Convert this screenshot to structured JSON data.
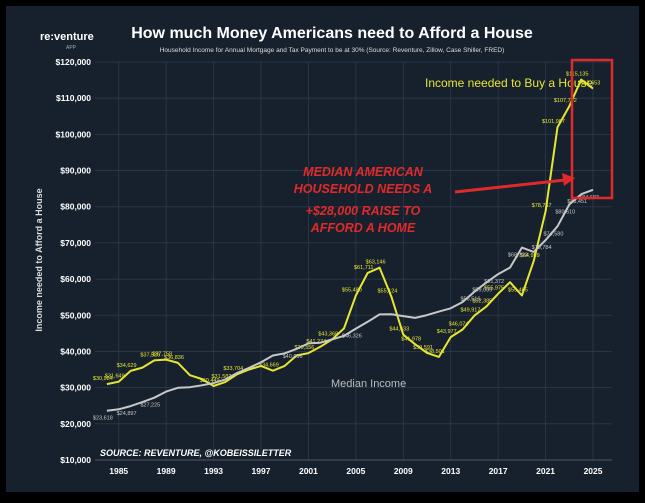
{
  "brand": {
    "name": "re:venture",
    "sub": "APP"
  },
  "chart_data": {
    "type": "line",
    "title": "How much Money Americans need to Afford a House",
    "subtitle": "Household Income for Annual Mortgage and Tax Payment to be at 30% (Source: Reventure, Zillow, Case Shiller, FRED)",
    "y_label": "Income needed to Afford a House",
    "series_labels": [
      "Income needed to Buy a House",
      "Median Income"
    ],
    "callout": [
      "MEDIAN AMERICAN",
      "HOUSEHOLD NEEDS A",
      "+$28,000 RAISE TO",
      "AFFORD A HOME"
    ],
    "source": "SOURCE: REVENTURE, @KOBEISSILETTER",
    "x": [
      1984,
      1985,
      1986,
      1987,
      1988,
      1989,
      1990,
      1991,
      1992,
      1993,
      1994,
      1995,
      1996,
      1997,
      1998,
      1999,
      2000,
      2001,
      2002,
      2003,
      2004,
      2005,
      2006,
      2007,
      2008,
      2009,
      2010,
      2011,
      2012,
      2013,
      2014,
      2015,
      2016,
      2017,
      2018,
      2019,
      2020,
      2021,
      2022,
      2023,
      2024,
      2025
    ],
    "series": [
      {
        "name": "Income needed to Buy a House",
        "color": "#e6e632",
        "values": [
          30984,
          31649,
          34629,
          35526,
          37526,
          37758,
          36836,
          33432,
          32384,
          30449,
          31582,
          33704,
          35000,
          36000,
          34669,
          36000,
          38885,
          39556,
          41274,
          43368,
          46384,
          55480,
          61711,
          63146,
          55124,
          44633,
          41978,
          39591,
          38501,
          43977,
          46074,
          49917,
          52385,
          55975,
          59150,
          55465,
          64959,
          78767,
          101987,
          107792,
          115135,
          112653
        ],
        "value_labels": [
          "$30,984",
          "$31,649",
          "$34,629",
          null,
          "$37,526",
          "$37,758",
          "$36,836",
          null,
          null,
          "$30,449",
          "$31,582",
          "$33,704",
          null,
          null,
          "$34,669",
          null,
          null,
          "$39,556",
          "$41,274",
          "$43,368",
          null,
          "$55,480",
          "$61,711",
          "$63,146",
          "$55,124",
          "$44,633",
          "$41,978",
          "$39,591",
          "$38,501",
          "$43,977",
          "$46,074",
          "$49,917",
          "$52,385",
          "$55,975",
          null,
          "$55,465",
          "$64,959",
          "$78,767",
          "$101,987",
          "$107,792",
          "$115,135",
          "$112,653"
        ]
      },
      {
        "name": "Median Income",
        "color": "#c8c8c8",
        "values": [
          23618,
          24000,
          24897,
          26000,
          27225,
          28906,
          29943,
          30126,
          30636,
          31241,
          32264,
          34076,
          35492,
          37005,
          38885,
          39500,
          40696,
          42228,
          42409,
          43318,
          44334,
          46326,
          48201,
          50233,
          50303,
          49777,
          49276,
          50054,
          51017,
          51939,
          53657,
          56516,
          59039,
          61372,
          63179,
          68703,
          67521,
          70784,
          74580,
          80610,
          83451,
          84683
        ],
        "value_labels": [
          "$23,618",
          null,
          "$24,897",
          null,
          "$27,225",
          null,
          null,
          null,
          null,
          null,
          null,
          null,
          null,
          null,
          null,
          null,
          "$40,696",
          null,
          null,
          null,
          null,
          "$46,326",
          null,
          null,
          null,
          null,
          null,
          null,
          null,
          null,
          null,
          "$56,516",
          "$59,039",
          "$61,372",
          null,
          "$68,703",
          null,
          "$70,784",
          "$74,580",
          "$80,610",
          "$83,451",
          "$84,683"
        ]
      }
    ],
    "xlim": [
      1983,
      2026.6
    ],
    "xticks": [
      1985,
      1989,
      1993,
      1997,
      2001,
      2005,
      2009,
      2013,
      2017,
      2021,
      2025
    ],
    "ylim": [
      10000,
      120000
    ],
    "yticks": [
      {
        "value": 10000,
        "label": "$10,000"
      },
      {
        "value": 20000,
        "label": "$20,000"
      },
      {
        "value": 30000,
        "label": "$30,000"
      },
      {
        "value": 40000,
        "label": "$40,000"
      },
      {
        "value": 50000,
        "label": "$50,000"
      },
      {
        "value": 60000,
        "label": "$60,000"
      },
      {
        "value": 70000,
        "label": "$70,000"
      },
      {
        "value": 80000,
        "label": "$80,000"
      },
      {
        "value": 90000,
        "label": "$90,000"
      },
      {
        "value": 100000,
        "label": "$100,000"
      },
      {
        "value": 110000,
        "label": "$110,000"
      },
      {
        "value": 120000,
        "label": "$120,000"
      }
    ],
    "grid": true
  }
}
